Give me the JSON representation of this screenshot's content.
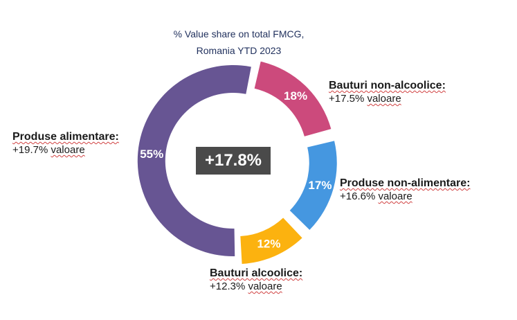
{
  "chart_data": {
    "type": "pie",
    "title_lines": [
      "% Value share on total FMCG,",
      "Romania YTD 2023"
    ],
    "center_label": "+17.8%",
    "slices": [
      {
        "key": "bauturi-non-alcoolice",
        "category": "Bauturi non-alcoolice:",
        "share": 18,
        "share_label": "18%",
        "growth_prefix": "+17.5%",
        "growth_word": "valoare",
        "color": "#cc4a7c"
      },
      {
        "key": "produse-non-alimentare",
        "category": "Produse non-alimentare:",
        "share": 17,
        "share_label": "17%",
        "growth_prefix": "+16.6%",
        "growth_word": "valoare",
        "color": "#4597e0"
      },
      {
        "key": "bauturi-alcoolice",
        "category": "Bauturi alcoolice:",
        "share": 12,
        "share_label": "12%",
        "growth_prefix": "+12.3%",
        "growth_word": "valoare",
        "color": "#fcb20f"
      },
      {
        "key": "produse-alimentare",
        "category": "Produse alimentare:",
        "share": 55,
        "share_label": "55%",
        "growth_prefix": "+19.7%",
        "growth_word": "valoare",
        "color": "#675593"
      }
    ]
  }
}
